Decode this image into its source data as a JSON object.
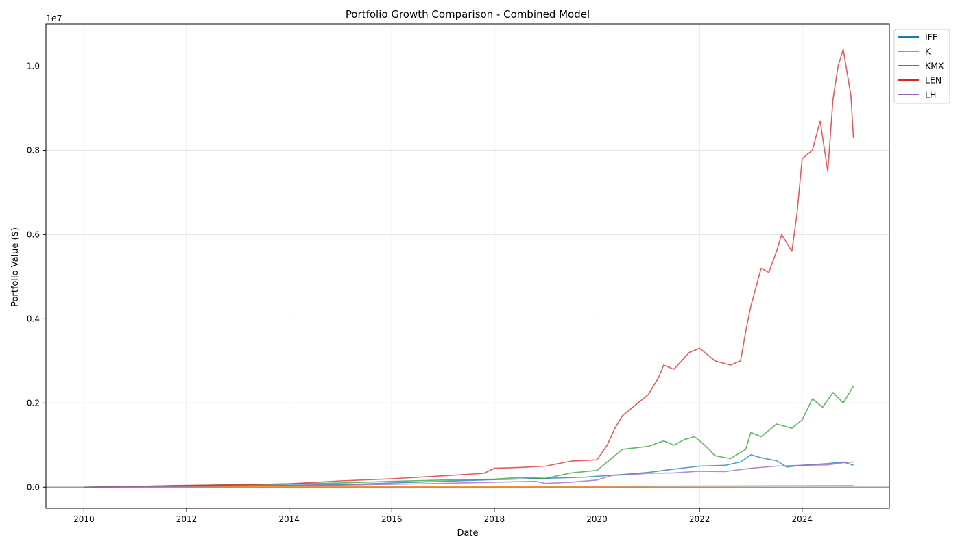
{
  "chart_data": {
    "type": "line",
    "title": "Portfolio Growth Comparison - Combined Model",
    "xlabel": "Date",
    "ylabel": "Portfolio Value ($)",
    "y_offset_text": "1e7",
    "xlim": [
      2009.26,
      2025.7
    ],
    "ylim": [
      -0.05,
      1.1
    ],
    "y_scale_note": "y values shown in units of 1e7 dollars",
    "x_ticks": [
      2010,
      2012,
      2014,
      2016,
      2018,
      2020,
      2022,
      2024
    ],
    "x_tick_labels": [
      "2010",
      "2012",
      "2014",
      "2016",
      "2018",
      "2020",
      "2022",
      "2024"
    ],
    "y_ticks": [
      0.0,
      0.2,
      0.4,
      0.6,
      0.8,
      1.0
    ],
    "y_tick_labels": [
      "0.0",
      "0.2",
      "0.4",
      "0.6",
      "0.8",
      "1.0"
    ],
    "grid": true,
    "baseline": 0.0,
    "legend_position": "top-right (outside)",
    "series": [
      {
        "name": "IFF",
        "color": "#1f77b4",
        "x": [
          2010.0,
          2011.0,
          2012.0,
          2013.0,
          2014.0,
          2015.0,
          2016.0,
          2017.0,
          2018.0,
          2019.0,
          2019.8,
          2020.0,
          2020.5,
          2021.0,
          2021.5,
          2022.0,
          2022.5,
          2022.8,
          2023.0,
          2023.2,
          2023.5,
          2023.7,
          2024.0,
          2024.5,
          2024.8,
          2025.0
        ],
        "y": [
          0.0,
          0.0015,
          0.003,
          0.004,
          0.005,
          0.006,
          0.01,
          0.014,
          0.018,
          0.021,
          0.024,
          0.026,
          0.03,
          0.035,
          0.043,
          0.05,
          0.052,
          0.06,
          0.077,
          0.07,
          0.063,
          0.048,
          0.052,
          0.056,
          0.06,
          0.052
        ]
      },
      {
        "name": "K",
        "color": "#ff7f0e",
        "x": [
          2010.0,
          2012.0,
          2014.0,
          2016.0,
          2018.0,
          2020.0,
          2022.0,
          2024.0,
          2025.0
        ],
        "y": [
          0.0,
          0.0007,
          0.0012,
          0.0015,
          0.0018,
          0.0022,
          0.0028,
          0.0035,
          0.004
        ]
      },
      {
        "name": "KMX",
        "color": "#2ca02c",
        "x": [
          2010.0,
          2011.0,
          2012.0,
          2013.0,
          2014.0,
          2015.0,
          2016.0,
          2017.0,
          2018.0,
          2018.5,
          2019.0,
          2019.5,
          2020.0,
          2020.3,
          2020.5,
          2021.0,
          2021.3,
          2021.5,
          2021.7,
          2021.9,
          2022.1,
          2022.3,
          2022.6,
          2022.9,
          2023.0,
          2023.2,
          2023.5,
          2023.8,
          2024.0,
          2024.2,
          2024.4,
          2024.6,
          2024.8,
          2025.0
        ],
        "y": [
          0.0,
          0.002,
          0.004,
          0.006,
          0.008,
          0.01,
          0.014,
          0.017,
          0.019,
          0.023,
          0.021,
          0.034,
          0.04,
          0.07,
          0.09,
          0.097,
          0.11,
          0.1,
          0.113,
          0.12,
          0.1,
          0.075,
          0.068,
          0.09,
          0.13,
          0.12,
          0.15,
          0.14,
          0.16,
          0.21,
          0.19,
          0.225,
          0.2,
          0.24
        ]
      },
      {
        "name": "LEN",
        "color": "#d62728",
        "x": [
          2010.0,
          2011.0,
          2011.8,
          2012.5,
          2013.0,
          2014.0,
          2015.0,
          2016.0,
          2017.0,
          2017.8,
          2018.0,
          2018.5,
          2019.0,
          2019.5,
          2020.0,
          2020.2,
          2020.35,
          2020.5,
          2020.8,
          2021.0,
          2021.2,
          2021.3,
          2021.5,
          2021.8,
          2022.0,
          2022.3,
          2022.6,
          2022.8,
          2022.9,
          2023.0,
          2023.2,
          2023.35,
          2023.5,
          2023.6,
          2023.8,
          2023.9,
          2024.0,
          2024.2,
          2024.35,
          2024.5,
          2024.6,
          2024.7,
          2024.8,
          2024.95,
          2025.0
        ],
        "y": [
          0.0,
          0.0015,
          0.004,
          0.005,
          0.006,
          0.008,
          0.015,
          0.02,
          0.027,
          0.033,
          0.045,
          0.047,
          0.05,
          0.062,
          0.065,
          0.1,
          0.14,
          0.17,
          0.2,
          0.22,
          0.26,
          0.29,
          0.28,
          0.32,
          0.33,
          0.3,
          0.29,
          0.3,
          0.37,
          0.43,
          0.52,
          0.51,
          0.56,
          0.6,
          0.56,
          0.65,
          0.78,
          0.8,
          0.87,
          0.75,
          0.92,
          1.0,
          1.04,
          0.93,
          0.83
        ]
      },
      {
        "name": "LH",
        "color": "#9467bd",
        "x": [
          2010.0,
          2011.0,
          2012.0,
          2013.0,
          2014.0,
          2015.0,
          2016.0,
          2017.0,
          2018.0,
          2018.8,
          2019.0,
          2019.5,
          2020.0,
          2020.3,
          2020.7,
          2021.0,
          2021.5,
          2022.0,
          2022.5,
          2022.8,
          2023.0,
          2023.5,
          2024.0,
          2024.5,
          2024.8,
          2025.0
        ],
        "y": [
          0.0,
          0.001,
          0.002,
          0.003,
          0.004,
          0.005,
          0.007,
          0.009,
          0.012,
          0.014,
          0.009,
          0.012,
          0.017,
          0.028,
          0.03,
          0.033,
          0.034,
          0.038,
          0.037,
          0.042,
          0.045,
          0.05,
          0.052,
          0.053,
          0.058,
          0.06
        ]
      }
    ]
  }
}
